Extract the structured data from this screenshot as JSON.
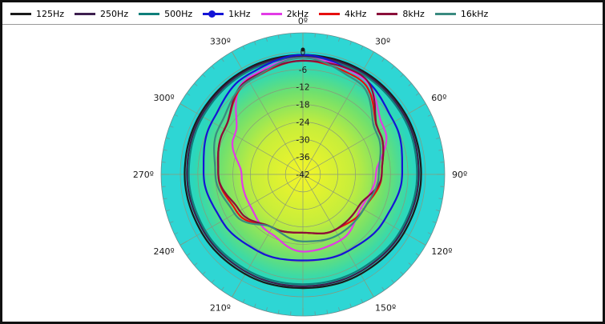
{
  "legend": [
    {
      "name": "125Hz",
      "color": "#1a1a1a"
    },
    {
      "name": "250Hz",
      "color": "#3d1f4e"
    },
    {
      "name": "500Hz",
      "color": "#0f7f7a"
    },
    {
      "name": "1kHz",
      "color": "#1414d6"
    },
    {
      "name": "2kHz",
      "color": "#e23be6"
    },
    {
      "name": "4kHz",
      "color": "#e60f0f"
    },
    {
      "name": "8kHz",
      "color": "#8a0f3a"
    },
    {
      "name": "16kHz",
      "color": "#3a8a80"
    }
  ],
  "chart_data": {
    "type": "polar-line",
    "angle_unit": "degrees",
    "angle_zero": "top",
    "angle_direction": "clockwise",
    "angle_ticks": [
      0,
      30,
      60,
      90,
      120,
      150,
      180,
      210,
      240,
      270,
      300,
      330
    ],
    "angle_tick_labels": [
      "0º",
      "30º",
      "60º",
      "90º",
      "120º",
      "150º",
      "180º",
      "210º",
      "240º",
      "270º",
      "300º",
      "330º"
    ],
    "radial_ticks": [
      0,
      -6,
      -12,
      -18,
      -24,
      -30,
      -36,
      -42
    ],
    "radial_tick_labels": [
      "0",
      "-6",
      "-12",
      "-18",
      "-24",
      "-30",
      "-36",
      "-42"
    ],
    "rlim": [
      -42,
      0
    ],
    "grid": true,
    "legend_position": "top",
    "series": [
      {
        "name": "125Hz",
        "color": "#1a1a1a",
        "angles": [
          0,
          30,
          60,
          90,
          120,
          150,
          180,
          210,
          240,
          270,
          300,
          330
        ],
        "values": [
          -1,
          -1,
          -1.2,
          -1.5,
          -2,
          -2.5,
          -3,
          -2.5,
          -2,
          -1.5,
          -1.2,
          -1
        ]
      },
      {
        "name": "250Hz",
        "color": "#3d1f4e",
        "angles": [
          0,
          30,
          60,
          90,
          120,
          150,
          180,
          210,
          240,
          270,
          300,
          330
        ],
        "values": [
          -1.5,
          -1.5,
          -1.8,
          -2.3,
          -2.8,
          -3.3,
          -3.6,
          -3.3,
          -2.8,
          -2.3,
          -1.8,
          -1.5
        ]
      },
      {
        "name": "500Hz",
        "color": "#0f7f7a",
        "angles": [
          0,
          30,
          60,
          90,
          120,
          150,
          180,
          210,
          240,
          270,
          300,
          330
        ],
        "values": [
          -2,
          -2,
          -2.4,
          -2.9,
          -3.4,
          -4,
          -4.3,
          -4,
          -3.4,
          -2.9,
          -2.4,
          -2
        ]
      },
      {
        "name": "1kHz",
        "color": "#1414d6",
        "angles": [
          0,
          30,
          60,
          90,
          120,
          150,
          180,
          210,
          240,
          270,
          300,
          330
        ],
        "values": [
          -1,
          -3,
          -6,
          -8,
          -10,
          -11.5,
          -12.5,
          -11.5,
          -10,
          -8,
          -6,
          -3
        ]
      },
      {
        "name": "2kHz",
        "color": "#e23be6",
        "angles": [
          0,
          30,
          60,
          90,
          120,
          150,
          180,
          210,
          240,
          270,
          300,
          330
        ],
        "values": [
          -2,
          -3,
          -10,
          -17,
          -19,
          -16,
          -15.5,
          -19,
          -21,
          -21,
          -15,
          -4
        ]
      },
      {
        "name": "4kHz",
        "color": "#e60f0f",
        "angles": [
          0,
          30,
          60,
          90,
          120,
          150,
          180,
          210,
          240,
          270,
          300,
          330
        ],
        "values": [
          -3,
          -4,
          -12,
          -15,
          -18,
          -20,
          -22,
          -21,
          -16,
          -13,
          -11,
          -5
        ]
      },
      {
        "name": "8kHz",
        "color": "#8a0f3a",
        "angles": [
          0,
          30,
          60,
          90,
          120,
          150,
          180,
          210,
          240,
          270,
          300,
          330
        ],
        "values": [
          -3,
          -2.5,
          -12,
          -15,
          -20,
          -20,
          -22,
          -21,
          -17,
          -13,
          -11,
          -4.5
        ]
      },
      {
        "name": "16kHz",
        "color": "#3a8a80",
        "angles": [
          0,
          30,
          60,
          90,
          120,
          150,
          180,
          210,
          240,
          270,
          300,
          330
        ],
        "values": [
          -2,
          -5,
          -13,
          -16,
          -18,
          -18,
          -19,
          -21,
          -15,
          -12,
          -9,
          -5
        ]
      }
    ]
  }
}
